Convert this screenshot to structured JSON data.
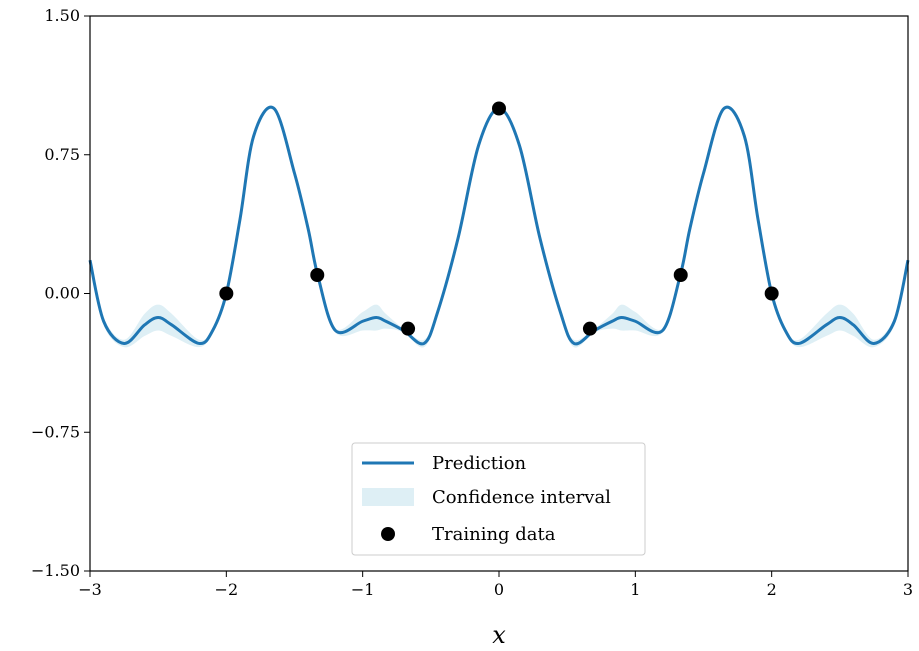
{
  "chart_data": {
    "type": "line",
    "xlabel": "x",
    "ylabel": "",
    "xlim": [
      -3,
      3
    ],
    "ylim": [
      -1.5,
      1.5
    ],
    "xticks": [
      -3,
      -2,
      -1,
      0,
      1,
      2,
      3
    ],
    "xtick_labels": [
      "−3",
      "−2",
      "−1",
      "0",
      "1",
      "2",
      "3"
    ],
    "yticks": [
      -1.5,
      -0.75,
      0.0,
      0.75,
      1.5
    ],
    "ytick_labels": [
      "−1.50",
      "−0.75",
      "0.00",
      "0.75",
      "1.50"
    ],
    "grid": false,
    "legend_position": "bottom-center",
    "colors": {
      "prediction": "#1f77b4",
      "confidence": "#add8e6",
      "training": "#000000"
    },
    "series": [
      {
        "name": "Prediction",
        "kind": "line",
        "x": [
          -3.0,
          -2.9,
          -2.75,
          -2.6,
          -2.5,
          -2.4,
          -2.2,
          -2.1,
          -2.0,
          -1.9,
          -1.8,
          -1.65,
          -1.5,
          -1.4,
          -1.33,
          -1.2,
          -1.0,
          -0.9,
          -0.83,
          -0.7,
          -0.55,
          -0.45,
          -0.3,
          -0.15,
          0.0,
          0.15,
          0.3,
          0.45,
          0.55,
          0.7,
          0.83,
          0.9,
          1.0,
          1.2,
          1.33,
          1.4,
          1.5,
          1.65,
          1.8,
          1.9,
          2.0,
          2.1,
          2.2,
          2.4,
          2.5,
          2.6,
          2.75,
          2.9,
          3.0
        ],
        "y": [
          0.18,
          -0.15,
          -0.27,
          -0.17,
          -0.13,
          -0.17,
          -0.27,
          -0.2,
          0.0,
          0.4,
          0.85,
          1.0,
          0.65,
          0.35,
          0.1,
          -0.2,
          -0.15,
          -0.13,
          -0.15,
          -0.2,
          -0.27,
          -0.1,
          0.3,
          0.8,
          1.0,
          0.8,
          0.3,
          -0.1,
          -0.27,
          -0.2,
          -0.15,
          -0.13,
          -0.15,
          -0.2,
          0.1,
          0.35,
          0.65,
          1.0,
          0.85,
          0.4,
          0.0,
          -0.2,
          -0.27,
          -0.17,
          -0.13,
          -0.17,
          -0.27,
          -0.15,
          0.18
        ]
      },
      {
        "name": "Confidence interval",
        "kind": "band",
        "x": [
          -3.0,
          -2.9,
          -2.75,
          -2.6,
          -2.5,
          -2.4,
          -2.2,
          -2.1,
          -2.0,
          -1.9,
          -1.8,
          -1.65,
          -1.5,
          -1.4,
          -1.33,
          -1.2,
          -1.0,
          -0.9,
          -0.83,
          -0.7,
          -0.55,
          -0.45,
          -0.3,
          -0.15,
          0.0,
          0.15,
          0.3,
          0.45,
          0.55,
          0.7,
          0.83,
          0.9,
          1.0,
          1.2,
          1.33,
          1.4,
          1.5,
          1.65,
          1.8,
          1.9,
          2.0,
          2.1,
          2.2,
          2.4,
          2.5,
          2.6,
          2.75,
          2.9,
          3.0
        ],
        "lower": [
          0.18,
          -0.17,
          -0.29,
          -0.23,
          -0.2,
          -0.23,
          -0.29,
          -0.21,
          0.0,
          0.39,
          0.84,
          0.99,
          0.64,
          0.34,
          0.1,
          -0.21,
          -0.2,
          -0.2,
          -0.19,
          -0.21,
          -0.29,
          -0.11,
          0.29,
          0.79,
          1.0,
          0.79,
          0.29,
          -0.11,
          -0.29,
          -0.21,
          -0.19,
          -0.2,
          -0.2,
          -0.21,
          0.1,
          0.34,
          0.64,
          0.99,
          0.84,
          0.39,
          0.0,
          -0.21,
          -0.29,
          -0.23,
          -0.2,
          -0.23,
          -0.29,
          -0.17,
          0.18
        ],
        "upper": [
          0.18,
          -0.13,
          -0.25,
          -0.11,
          -0.06,
          -0.11,
          -0.25,
          -0.19,
          0.0,
          0.41,
          0.86,
          1.01,
          0.66,
          0.36,
          0.1,
          -0.19,
          -0.1,
          -0.06,
          -0.11,
          -0.19,
          -0.25,
          -0.09,
          0.31,
          0.81,
          1.0,
          0.81,
          0.31,
          -0.09,
          -0.25,
          -0.19,
          -0.11,
          -0.06,
          -0.1,
          -0.19,
          0.1,
          0.36,
          0.66,
          1.01,
          0.86,
          0.41,
          0.0,
          -0.19,
          -0.25,
          -0.11,
          -0.06,
          -0.11,
          -0.25,
          -0.13,
          0.18
        ]
      },
      {
        "name": "Training data",
        "kind": "scatter",
        "x": [
          -2.0,
          -1.333,
          -0.667,
          0.0,
          0.667,
          1.333,
          2.0
        ],
        "y": [
          0.0,
          0.1,
          -0.19,
          1.0,
          -0.19,
          0.1,
          0.0
        ]
      }
    ]
  }
}
